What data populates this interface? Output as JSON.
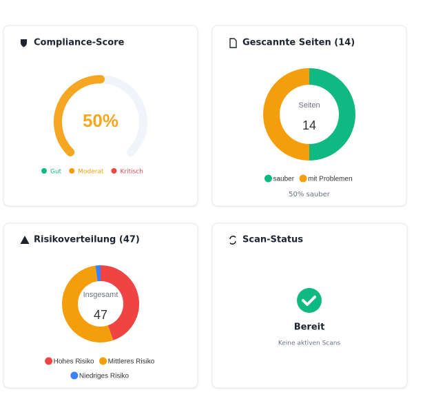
{
  "compliance": {
    "title": "Compliance-Score",
    "value": 50,
    "value_label": "50%",
    "max": 100,
    "color": "#f5a623",
    "track_color": "#f1f4f8",
    "legend": [
      {
        "name": "Gut",
        "color": "#10b981"
      },
      {
        "name": "Moderat",
        "color": "#f59e0b"
      },
      {
        "name": "Kritisch",
        "color": "#ef4444"
      }
    ]
  },
  "pages": {
    "title": "Gescannte Seiten (14)",
    "type": "donut",
    "center_label": "Seiten",
    "total": 14,
    "series": [
      {
        "name": "sauber",
        "color": "#10b981",
        "value": 7
      },
      {
        "name": "mit Problemen",
        "color": "#f59e0b",
        "value": 7
      }
    ],
    "note": "50% sauber"
  },
  "risk": {
    "title": "Risikoverteilung (47)",
    "type": "donut",
    "center_label": "Insgesamt",
    "total": 47,
    "series": [
      {
        "name": "Hohes Risiko",
        "color": "#ef4444",
        "value": 21
      },
      {
        "name": "Mittleres Risiko",
        "color": "#f59e0b",
        "value": 25
      },
      {
        "name": "Niedriges Risiko",
        "color": "#3b82f6",
        "value": 1
      }
    ]
  },
  "status": {
    "title": "Scan-Status",
    "state": "Bereit",
    "message": "Keine aktiven Scans"
  }
}
